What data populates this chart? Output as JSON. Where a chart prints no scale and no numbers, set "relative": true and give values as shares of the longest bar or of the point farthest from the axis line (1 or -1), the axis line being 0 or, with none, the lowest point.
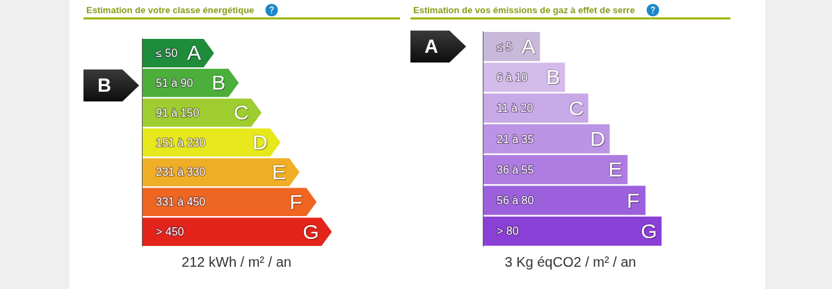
{
  "chart_data": [
    {
      "type": "bar",
      "orientation": "horizontal",
      "relative": true,
      "title": "Estimation de votre classe énergétique",
      "categories": [
        "≤ 50",
        "51 à 90",
        "91 à 150",
        "151 à 230",
        "231 à 330",
        "331 à 450",
        "> 450"
      ],
      "values": [
        0.38,
        0.51,
        0.63,
        0.73,
        0.83,
        0.92,
        1
      ],
      "colors": [
        "#1f8c3b",
        "#4caf3c",
        "#9fcd2f",
        "#e6e81c",
        "#f0ae26",
        "#ef6522",
        "#e3241b"
      ],
      "annotations": [
        "B",
        {
          "text": "A",
          "x": 0.38,
          "y": "≤ 50"
        },
        {
          "text": "B",
          "x": 0.51,
          "y": "51 à 90"
        },
        {
          "text": "C",
          "x": 0.63,
          "y": "91 à 150"
        },
        {
          "text": "D",
          "x": 0.73,
          "y": "151 à 230"
        },
        {
          "text": "E",
          "x": 0.83,
          "y": "231 à 330"
        },
        {
          "text": "F",
          "x": 0.92,
          "y": "331 à 450"
        },
        {
          "text": "G",
          "x": 1,
          "y": "> 450"
        },
        "212 kWh / m² / an"
      ]
    },
    {
      "type": "bar",
      "orientation": "horizontal",
      "relative": true,
      "title": "Estimation de vos émissions de gaz à effet de serre",
      "categories": [
        "≤ 5",
        "6 à 10",
        "11 à 20",
        "21 à 35",
        "36 à 55",
        "56 à 80",
        "> 80"
      ],
      "values": [
        0.32,
        0.46,
        0.59,
        0.71,
        0.81,
        0.91,
        1
      ],
      "colors": [
        "#c8b9da",
        "#d3bbea",
        "#c8a9e8",
        "#bc94e5",
        "#ae7ce1",
        "#9c60dd",
        "#8a3fd6"
      ],
      "annotations": [
        "A",
        {
          "text": "A",
          "x": 0.32,
          "y": "≤ 5"
        },
        {
          "text": "B",
          "x": 0.46,
          "y": "6 à 10"
        },
        {
          "text": "C",
          "x": 0.59,
          "y": "11 à 20"
        },
        {
          "text": "D",
          "x": 0.71,
          "y": "21 à 35"
        },
        {
          "text": "E",
          "x": 0.81,
          "y": "36 à 55"
        },
        {
          "text": "F",
          "x": 0.91,
          "y": "56 à 80"
        },
        {
          "text": "G",
          "x": 1,
          "y": "> 80"
        },
        "3 Kg éqCO2 / m² / an"
      ]
    }
  ]
}
